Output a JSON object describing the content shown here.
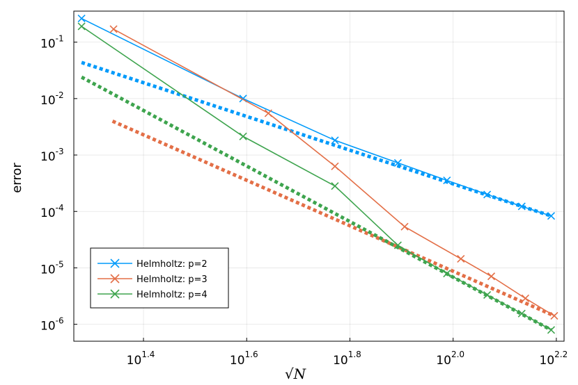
{
  "chart_data": {
    "type": "line",
    "xscale": "log10",
    "yscale": "log10",
    "xlabel": "√N",
    "ylabel": "error",
    "xlim_log10": [
      1.265,
      2.215
    ],
    "ylim_log10": [
      -6.3,
      -0.45
    ],
    "x_ticks": [
      {
        "base": "10",
        "exp": "1.4",
        "log10": 1.4
      },
      {
        "base": "10",
        "exp": "1.6",
        "log10": 1.6
      },
      {
        "base": "10",
        "exp": "1.8",
        "log10": 1.8
      },
      {
        "base": "10",
        "exp": "2.0",
        "log10": 2.0
      },
      {
        "base": "10",
        "exp": "2.2",
        "log10": 2.2
      }
    ],
    "y_ticks": [
      {
        "base": "10",
        "exp": "-1",
        "log10": -1
      },
      {
        "base": "10",
        "exp": "-2",
        "log10": -2
      },
      {
        "base": "10",
        "exp": "-3",
        "log10": -3
      },
      {
        "base": "10",
        "exp": "-4",
        "log10": -4
      },
      {
        "base": "10",
        "exp": "-5",
        "log10": -5
      },
      {
        "base": "10",
        "exp": "-6",
        "log10": -6
      }
    ],
    "grid": true,
    "legend_position": "bottom-left",
    "series": [
      {
        "name": "Helmholtz: p=2",
        "color": "#009AFA",
        "marker": "x",
        "log10_x": [
          1.28,
          1.593,
          1.771,
          1.893,
          1.988,
          2.066,
          2.133,
          2.19
        ],
        "log10_y": [
          -0.58,
          -2.0,
          -2.74,
          -3.14,
          -3.45,
          -3.7,
          -3.91,
          -4.08
        ]
      },
      {
        "name": "Helmholtz: p=3",
        "color": "#E36F47",
        "marker": "x",
        "log10_x": [
          1.342,
          1.642,
          1.771,
          1.906,
          2.015,
          2.074,
          2.14,
          2.196
        ],
        "log10_y": [
          -0.77,
          -2.26,
          -3.2,
          -4.27,
          -4.84,
          -5.15,
          -5.54,
          -5.85
        ]
      },
      {
        "name": "Helmholtz: p=4",
        "color": "#3EA44E",
        "marker": "x",
        "log10_x": [
          1.28,
          1.593,
          1.771,
          1.893,
          1.988,
          2.066,
          2.133,
          2.19
        ],
        "log10_y": [
          -0.72,
          -2.67,
          -3.55,
          -4.6,
          -5.1,
          -5.48,
          -5.81,
          -6.1
        ]
      }
    ],
    "reference_lines": [
      {
        "name": "p=2 reference",
        "color": "#009AFA",
        "style": "dotted",
        "log10_x": [
          1.28,
          2.19
        ],
        "log10_y": [
          -1.36,
          -4.08
        ]
      },
      {
        "name": "p=3 reference",
        "color": "#E36F47",
        "style": "dotted",
        "log10_x": [
          1.34,
          2.196
        ],
        "log10_y": [
          -2.4,
          -5.85
        ]
      },
      {
        "name": "p=4 reference",
        "color": "#3EA44E",
        "style": "dotted",
        "log10_x": [
          1.28,
          2.19
        ],
        "log10_y": [
          -1.62,
          -6.1
        ]
      }
    ]
  }
}
